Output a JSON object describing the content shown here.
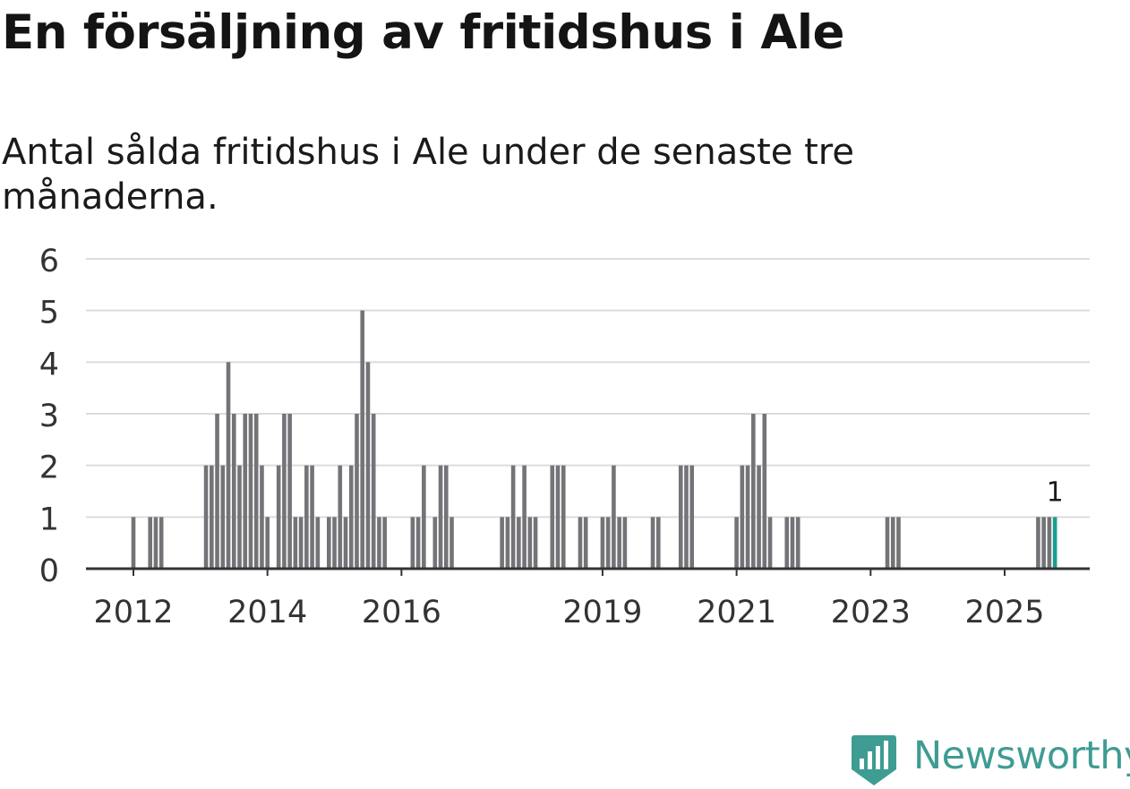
{
  "title": "En försäljning av fritidshus i Ale",
  "subtitle": "Antal sålda fritidshus i Ale under de senaste tre månaderna.",
  "logo": {
    "text": "Newsworthy",
    "icon": "newsworthy-logo-icon",
    "color": "#3e9c92"
  },
  "colors": {
    "bar": "#737378",
    "highlight": "#1a9e8f",
    "grid": "#dcdcdc",
    "axis": "#333333"
  },
  "chart_data": {
    "type": "bar",
    "x_unit": "quarter",
    "xlabel": "",
    "ylabel": "",
    "ylim": [
      0,
      6
    ],
    "yticks": [
      0,
      1,
      2,
      3,
      4,
      5,
      6
    ],
    "xticks": [
      "2012",
      "2014",
      "2016",
      "2019",
      "2021",
      "2023",
      "2025"
    ],
    "grid": true,
    "legend": "none",
    "annotation": {
      "x": "2025-10",
      "text": "1"
    },
    "x": [
      "2012-01",
      "2012-04",
      "2012-05",
      "2012-06",
      "2013-02",
      "2013-03",
      "2013-04",
      "2013-05",
      "2013-06",
      "2013-07",
      "2013-08",
      "2013-09",
      "2013-10",
      "2013-11",
      "2013-12",
      "2014-01",
      "2014-02",
      "2014-03",
      "2014-04",
      "2014-05",
      "2014-06",
      "2014-07",
      "2014-08",
      "2014-09",
      "2014-10",
      "2014-11",
      "2014-12",
      "2015-01",
      "2015-02",
      "2015-03",
      "2015-04",
      "2015-05",
      "2015-06",
      "2015-07",
      "2015-08",
      "2015-09",
      "2015-10",
      "2015-11",
      "2016-03",
      "2016-04",
      "2016-05",
      "2016-07",
      "2016-08",
      "2016-09",
      "2016-10",
      "2017-07",
      "2017-08",
      "2017-09",
      "2017-10",
      "2017-11",
      "2017-12",
      "2018-01",
      "2018-04",
      "2018-05",
      "2018-06",
      "2018-09",
      "2018-10",
      "2019-01",
      "2019-02",
      "2019-03",
      "2019-04",
      "2019-05",
      "2019-10",
      "2019-11",
      "2020-03",
      "2020-04",
      "2020-05",
      "2020-06",
      "2021-01",
      "2021-02",
      "2021-03",
      "2021-04",
      "2021-05",
      "2021-06",
      "2021-07",
      "2021-08",
      "2021-10",
      "2021-11",
      "2021-12",
      "2023-04",
      "2023-05",
      "2023-06",
      "2025-06",
      "2025-07",
      "2025-08",
      "2025-09",
      "2025-10"
    ],
    "values": [
      1,
      1,
      1,
      1,
      2,
      2,
      3,
      2,
      4,
      3,
      2,
      3,
      3,
      3,
      2,
      1,
      0,
      2,
      3,
      3,
      1,
      1,
      2,
      2,
      1,
      0,
      1,
      1,
      2,
      1,
      2,
      3,
      5,
      4,
      3,
      1,
      1,
      0,
      1,
      1,
      2,
      1,
      2,
      2,
      1,
      1,
      1,
      2,
      1,
      2,
      1,
      1,
      2,
      2,
      2,
      1,
      1,
      1,
      1,
      2,
      1,
      1,
      1,
      1,
      2,
      2,
      2,
      0,
      1,
      2,
      2,
      3,
      2,
      3,
      1,
      0,
      1,
      1,
      1,
      1,
      1,
      1,
      0,
      1,
      1,
      1,
      1
    ]
  }
}
